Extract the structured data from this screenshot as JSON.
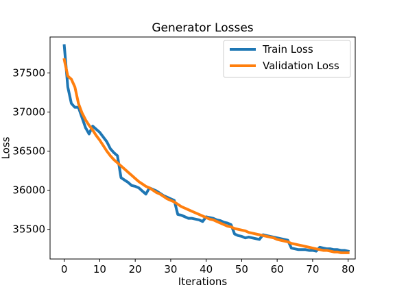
{
  "chart_data": {
    "type": "line",
    "title": "Generator Losses",
    "xlabel": "Iterations",
    "ylabel": "Loss",
    "xlim": [
      -4,
      82
    ],
    "ylim": [
      35120,
      37960
    ],
    "xticks": [
      0,
      10,
      20,
      30,
      40,
      50,
      60,
      70,
      80
    ],
    "yticks": [
      35500,
      36000,
      36500,
      37000,
      37500
    ],
    "grid": false,
    "legend_position": "top-right",
    "series": [
      {
        "name": "Train Loss",
        "color": "#1f77b4",
        "x": [
          0,
          1,
          2,
          3,
          4,
          5,
          6,
          7,
          8,
          9,
          10,
          11,
          12,
          13,
          14,
          15,
          16,
          17,
          18,
          19,
          20,
          21,
          22,
          23,
          24,
          25,
          26,
          27,
          28,
          29,
          30,
          31,
          32,
          33,
          34,
          35,
          36,
          37,
          38,
          39,
          40,
          41,
          42,
          43,
          44,
          45,
          46,
          47,
          48,
          49,
          50,
          51,
          52,
          53,
          54,
          55,
          56,
          57,
          58,
          59,
          60,
          61,
          62,
          63,
          64,
          65,
          66,
          67,
          68,
          69,
          70,
          71,
          72,
          73,
          74,
          75,
          76,
          77,
          78,
          79,
          80
        ],
        "y": [
          37850,
          37320,
          37110,
          37060,
          37060,
          36930,
          36800,
          36720,
          36820,
          36780,
          36740,
          36680,
          36620,
          36530,
          36480,
          36440,
          36160,
          36130,
          36100,
          36060,
          36050,
          36030,
          35990,
          35950,
          36030,
          36010,
          35990,
          35960,
          35930,
          35910,
          35890,
          35870,
          35690,
          35680,
          35660,
          35640,
          35640,
          35630,
          35620,
          35600,
          35660,
          35650,
          35640,
          35620,
          35610,
          35590,
          35580,
          35560,
          35440,
          35420,
          35410,
          35390,
          35400,
          35390,
          35380,
          35370,
          35430,
          35420,
          35410,
          35400,
          35390,
          35380,
          35370,
          35360,
          35260,
          35250,
          35240,
          35240,
          35240,
          35230,
          35230,
          35220,
          35270,
          35260,
          35250,
          35250,
          35240,
          35240,
          35230,
          35230,
          35220
        ]
      },
      {
        "name": "Validation Loss",
        "color": "#ff7f0e",
        "x": [
          0,
          1,
          2,
          3,
          4,
          5,
          6,
          7,
          8,
          9,
          10,
          11,
          12,
          13,
          14,
          15,
          16,
          17,
          18,
          19,
          20,
          21,
          22,
          23,
          24,
          25,
          26,
          27,
          28,
          29,
          30,
          31,
          32,
          33,
          34,
          35,
          36,
          37,
          38,
          39,
          40,
          41,
          42,
          43,
          44,
          45,
          46,
          47,
          48,
          49,
          50,
          51,
          52,
          53,
          54,
          55,
          56,
          57,
          58,
          59,
          60,
          61,
          62,
          63,
          64,
          65,
          66,
          67,
          68,
          69,
          70,
          71,
          72,
          73,
          74,
          75,
          76,
          77,
          78,
          79,
          80
        ],
        "y": [
          37670,
          37460,
          37420,
          37320,
          37110,
          36990,
          36900,
          36830,
          36770,
          36700,
          36640,
          36570,
          36500,
          36440,
          36390,
          36350,
          36310,
          36270,
          36230,
          36190,
          36150,
          36110,
          36080,
          36050,
          36030,
          36000,
          35970,
          35950,
          35920,
          35890,
          35870,
          35850,
          35820,
          35790,
          35770,
          35750,
          35730,
          35710,
          35690,
          35670,
          35650,
          35630,
          35620,
          35600,
          35580,
          35560,
          35540,
          35530,
          35510,
          35500,
          35490,
          35480,
          35460,
          35450,
          35440,
          35430,
          35420,
          35410,
          35400,
          35390,
          35370,
          35360,
          35350,
          35340,
          35320,
          35310,
          35300,
          35290,
          35280,
          35270,
          35260,
          35250,
          35240,
          35230,
          35230,
          35220,
          35210,
          35210,
          35200,
          35200,
          35200
        ]
      }
    ]
  }
}
